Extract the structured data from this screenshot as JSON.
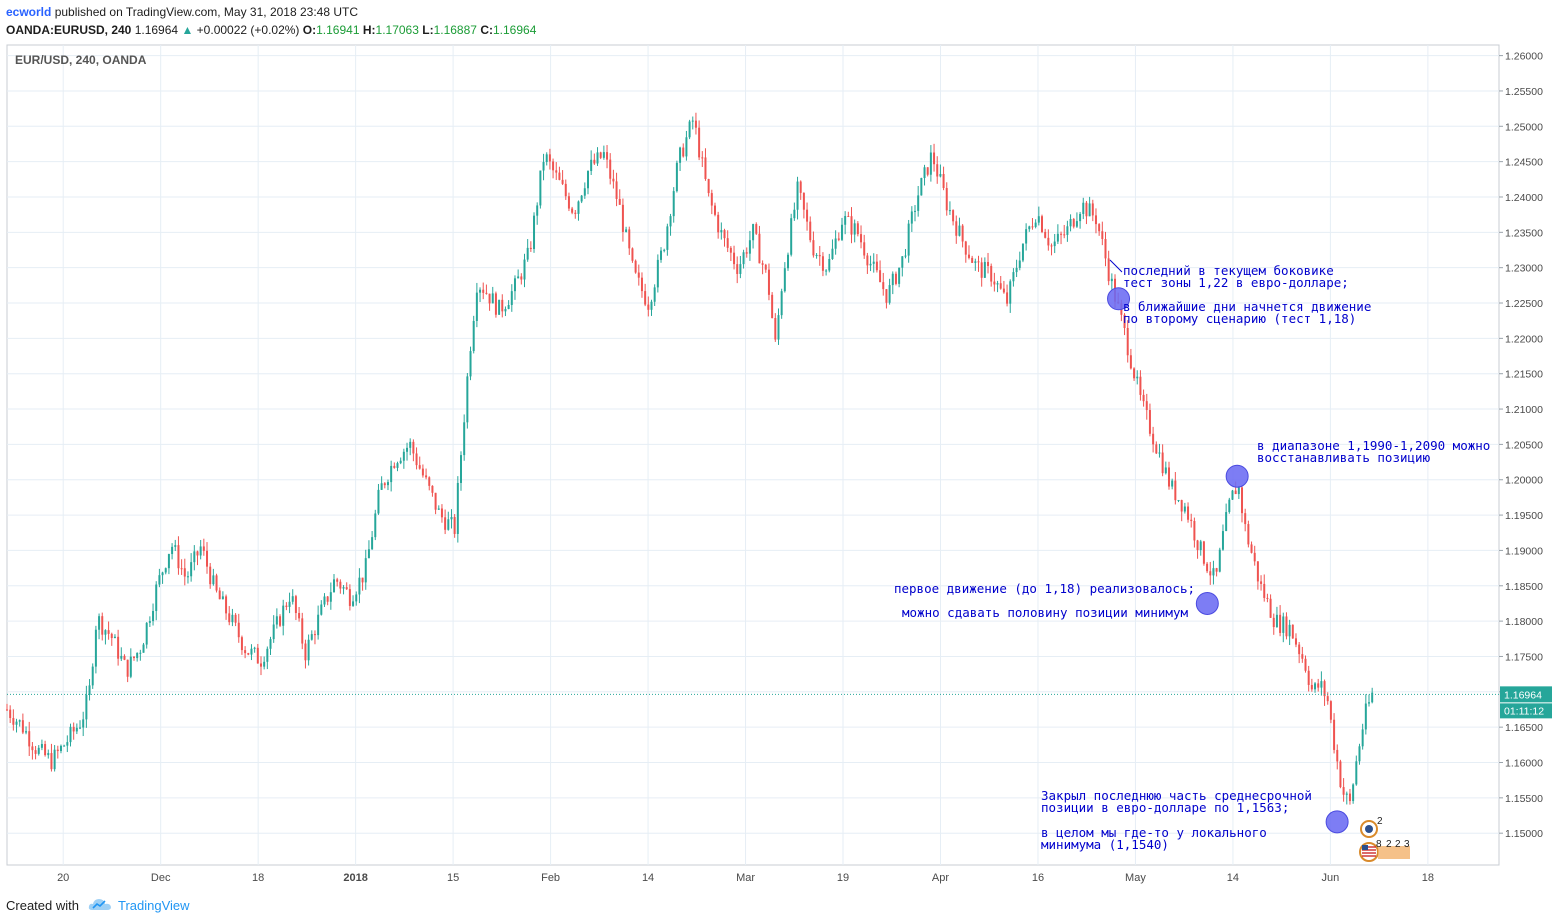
{
  "header": {
    "author": "ecworld",
    "published": "published on TradingView.com, May 31, 2018 23:48 UTC",
    "symbol": "OANDA:EURUSD, 240",
    "last": "1.16964",
    "arrow": "▲",
    "change": "+0.00022 (+0.02%)",
    "o_label": "O:",
    "o": "1.16941",
    "h_label": "H:",
    "h": "1.17063",
    "l_label": "L:",
    "l": "1.16887",
    "c_label": "C:",
    "c": "1.16964"
  },
  "chart_data": {
    "type": "candlestick",
    "title": "EUR/USD, 240, OANDA",
    "ylim": [
      1.1455,
      1.2615
    ],
    "y_ticks": [
      "1.26000",
      "1.25500",
      "1.25000",
      "1.24500",
      "1.24000",
      "1.23500",
      "1.23000",
      "1.22500",
      "1.22000",
      "1.21500",
      "1.21000",
      "1.20500",
      "1.20000",
      "1.19500",
      "1.19000",
      "1.18500",
      "1.18000",
      "1.17500",
      "1.17000",
      "1.16500",
      "1.16000",
      "1.15500",
      "1.15000"
    ],
    "x_ticks": [
      "20",
      "Dec",
      "18",
      "2018",
      "15",
      "Feb",
      "14",
      "Mar",
      "19",
      "Apr",
      "16",
      "May",
      "14",
      "Jun",
      "18"
    ],
    "price_line": "1.16964",
    "countdown": "01:11:12",
    "price_path": [
      [
        0,
        1.1675
      ],
      [
        0.01,
        1.1652
      ],
      [
        0.02,
        1.1618
      ],
      [
        0.03,
        1.1602
      ],
      [
        0.04,
        1.163
      ],
      [
        0.05,
        1.166
      ],
      [
        0.055,
        1.1695
      ],
      [
        0.06,
        1.1805
      ],
      [
        0.07,
        1.1778
      ],
      [
        0.08,
        1.173
      ],
      [
        0.09,
        1.1765
      ],
      [
        0.1,
        1.1845
      ],
      [
        0.11,
        1.191
      ],
      [
        0.12,
        1.186
      ],
      [
        0.13,
        1.1905
      ],
      [
        0.14,
        1.184
      ],
      [
        0.15,
        1.1802
      ],
      [
        0.16,
        1.176
      ],
      [
        0.17,
        1.1745
      ],
      [
        0.18,
        1.179
      ],
      [
        0.19,
        1.184
      ],
      [
        0.2,
        1.1755
      ],
      [
        0.21,
        1.181
      ],
      [
        0.22,
        1.186
      ],
      [
        0.23,
        1.1835
      ],
      [
        0.24,
        1.187
      ],
      [
        0.25,
        1.1985
      ],
      [
        0.26,
        1.203
      ],
      [
        0.27,
        1.205
      ],
      [
        0.28,
        1.2
      ],
      [
        0.29,
        1.195
      ],
      [
        0.3,
        1.193
      ],
      [
        0.31,
        1.218
      ],
      [
        0.315,
        1.228
      ],
      [
        0.32,
        1.227
      ],
      [
        0.33,
        1.224
      ],
      [
        0.34,
        1.227
      ],
      [
        0.35,
        1.232
      ],
      [
        0.36,
        1.246
      ],
      [
        0.37,
        1.242
      ],
      [
        0.38,
        1.238
      ],
      [
        0.39,
        1.244
      ],
      [
        0.4,
        1.246
      ],
      [
        0.41,
        1.239
      ],
      [
        0.42,
        1.229
      ],
      [
        0.43,
        1.225
      ],
      [
        0.44,
        1.233
      ],
      [
        0.45,
        1.245
      ],
      [
        0.46,
        1.251
      ],
      [
        0.47,
        1.24
      ],
      [
        0.48,
        1.234
      ],
      [
        0.49,
        1.23
      ],
      [
        0.5,
        1.235
      ],
      [
        0.51,
        1.228
      ],
      [
        0.515,
        1.219
      ],
      [
        0.52,
        1.229
      ],
      [
        0.53,
        1.241
      ],
      [
        0.54,
        1.233
      ],
      [
        0.55,
        1.23
      ],
      [
        0.56,
        1.237
      ],
      [
        0.57,
        1.235
      ],
      [
        0.58,
        1.23
      ],
      [
        0.59,
        1.226
      ],
      [
        0.6,
        1.231
      ],
      [
        0.61,
        1.24
      ],
      [
        0.62,
        1.246
      ],
      [
        0.63,
        1.239
      ],
      [
        0.64,
        1.234
      ],
      [
        0.65,
        1.23
      ],
      [
        0.66,
        1.229
      ],
      [
        0.67,
        1.225
      ],
      [
        0.68,
        1.233
      ],
      [
        0.69,
        1.238
      ],
      [
        0.7,
        1.233
      ],
      [
        0.71,
        1.235
      ],
      [
        0.72,
        1.239
      ],
      [
        0.73,
        1.237
      ],
      [
        0.74,
        1.228
      ],
      [
        0.75,
        1.22
      ],
      [
        0.76,
        1.211
      ],
      [
        0.77,
        1.205
      ],
      [
        0.78,
        1.199
      ],
      [
        0.79,
        1.196
      ],
      [
        0.8,
        1.19
      ],
      [
        0.81,
        1.1855
      ],
      [
        0.815,
        1.192
      ],
      [
        0.82,
        1.197
      ],
      [
        0.825,
        1.1995
      ],
      [
        0.83,
        1.193
      ],
      [
        0.84,
        1.185
      ],
      [
        0.85,
        1.18
      ],
      [
        0.86,
        1.179
      ],
      [
        0.87,
        1.174
      ],
      [
        0.875,
        1.17
      ],
      [
        0.88,
        1.171
      ],
      [
        0.885,
        1.169
      ],
      [
        0.89,
        1.162
      ],
      [
        0.895,
        1.156
      ],
      [
        0.9,
        1.154
      ],
      [
        0.905,
        1.161
      ],
      [
        0.91,
        1.1665
      ],
      [
        0.915,
        1.1696
      ]
    ],
    "annotations": [
      {
        "lines": [
          "последний в текущем боковике",
          "тест зоны 1,22 в евро-долларе;"
        ],
        "pos": "upper-right"
      },
      {
        "lines": [
          "в ближайшие дни начнется движение",
          "по второму сценарию (тест 1,18)"
        ],
        "pos": "upper-right"
      },
      {
        "lines": [
          "в диапазоне 1,1990-1,2090 можно",
          "восстанавливать позицию"
        ],
        "pos": "mid-right"
      },
      {
        "lines": [
          "первое движение (до 1,18) реализовалось;"
        ],
        "pos": "mid-right"
      },
      {
        "lines": [
          "можно сдавать половину позиции минимум"
        ],
        "pos": "mid-right"
      },
      {
        "lines": [
          "Закрыл последнюю часть среднесрочной",
          "позиции в евро-долларе по 1,1563;"
        ],
        "pos": "bottom-right"
      },
      {
        "lines": [
          "в целом мы где-то у локального",
          "минимума (1,1540)"
        ],
        "pos": "bottom-right"
      }
    ],
    "markers": [
      1.2256,
      1.2005,
      1.1825,
      1.1516
    ],
    "event_badges": [
      "2",
      "8",
      "2",
      "2",
      "3"
    ],
    "colors": {
      "up": "#26a69a",
      "down": "#ef5350",
      "annotation": "#0000cc",
      "marker": "#6b6bf2",
      "price_tag": "#26a69a",
      "grid": "#e6eef5"
    }
  },
  "footer": {
    "created": "Created with",
    "brand": "TradingView"
  }
}
